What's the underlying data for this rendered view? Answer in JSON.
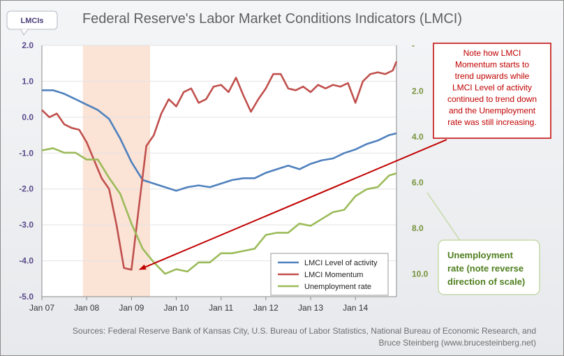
{
  "chart_data": {
    "type": "line",
    "title": "Federal Reserve's Labor Market Conditions Indicators (LMCI)",
    "y_left_label": "LMCIs",
    "y_left_range": [
      -5.0,
      2.0
    ],
    "y_left_ticks": [
      "2.0",
      "1.0",
      "0.0",
      "-1.0",
      "-2.0",
      "-3.0",
      "-4.0",
      "-5.0"
    ],
    "y_right_range": [
      0,
      11.0
    ],
    "y_right_reversed": true,
    "y_right_ticks": [
      "-",
      "2.0",
      "4.0",
      "6.0",
      "8.0",
      "10.0"
    ],
    "x_range": [
      "2007-01",
      "2014-12"
    ],
    "x_ticks": [
      "Jan 07",
      "Jan 08",
      "Jan 09",
      "Jan 10",
      "Jan 11",
      "Jan 12",
      "Jan 13",
      "Jan 14"
    ],
    "recession_shading": [
      "2007-12",
      "2009-06"
    ],
    "grid": "horizontal",
    "legend_position": "bottom-right",
    "series": [
      {
        "name": "LMCI Level of activity",
        "color": "#4f81bd",
        "axis": "left",
        "x": [
          "2007-01",
          "2007-04",
          "2007-07",
          "2007-10",
          "2008-01",
          "2008-04",
          "2008-07",
          "2008-10",
          "2009-01",
          "2009-04",
          "2009-07",
          "2009-10",
          "2010-01",
          "2010-04",
          "2010-07",
          "2010-10",
          "2011-01",
          "2011-04",
          "2011-07",
          "2011-10",
          "2012-01",
          "2012-04",
          "2012-07",
          "2012-10",
          "2013-01",
          "2013-04",
          "2013-07",
          "2013-10",
          "2014-01",
          "2014-04",
          "2014-07",
          "2014-10",
          "2014-12"
        ],
        "values": [
          0.75,
          0.75,
          0.65,
          0.5,
          0.35,
          0.2,
          -0.05,
          -0.6,
          -1.25,
          -1.75,
          -1.85,
          -1.95,
          -2.05,
          -1.95,
          -1.9,
          -1.95,
          -1.85,
          -1.75,
          -1.7,
          -1.7,
          -1.55,
          -1.45,
          -1.35,
          -1.45,
          -1.3,
          -1.2,
          -1.15,
          -1.0,
          -0.9,
          -0.75,
          -0.65,
          -0.5,
          -0.45
        ]
      },
      {
        "name": "LMCI Momentum",
        "color": "#c0504d",
        "axis": "left",
        "x": [
          "2007-01",
          "2007-03",
          "2007-05",
          "2007-07",
          "2007-09",
          "2007-11",
          "2008-01",
          "2008-03",
          "2008-05",
          "2008-07",
          "2008-09",
          "2008-11",
          "2009-01",
          "2009-03",
          "2009-05",
          "2009-07",
          "2009-09",
          "2009-11",
          "2010-01",
          "2010-03",
          "2010-05",
          "2010-07",
          "2010-09",
          "2010-11",
          "2011-01",
          "2011-03",
          "2011-05",
          "2011-07",
          "2011-09",
          "2011-11",
          "2012-01",
          "2012-03",
          "2012-05",
          "2012-07",
          "2012-09",
          "2012-11",
          "2013-01",
          "2013-03",
          "2013-05",
          "2013-07",
          "2013-09",
          "2013-11",
          "2014-01",
          "2014-03",
          "2014-05",
          "2014-07",
          "2014-09",
          "2014-11",
          "2014-12"
        ],
        "values": [
          0.2,
          0.0,
          0.1,
          -0.2,
          -0.3,
          -0.35,
          -0.7,
          -1.2,
          -1.7,
          -2.0,
          -3.0,
          -4.2,
          -4.25,
          -2.5,
          -0.8,
          -0.5,
          0.1,
          0.5,
          0.3,
          0.7,
          0.8,
          0.4,
          0.5,
          0.85,
          0.9,
          0.7,
          1.1,
          0.6,
          0.15,
          0.5,
          0.8,
          1.2,
          1.2,
          0.8,
          0.75,
          0.85,
          0.7,
          0.9,
          0.8,
          0.9,
          0.85,
          0.95,
          0.4,
          1.0,
          1.2,
          1.25,
          1.2,
          1.3,
          1.55
        ]
      },
      {
        "name": "Unemployment rate",
        "color": "#9bbb59",
        "axis": "right",
        "x": [
          "2007-01",
          "2007-04",
          "2007-07",
          "2007-10",
          "2008-01",
          "2008-04",
          "2008-07",
          "2008-10",
          "2009-01",
          "2009-04",
          "2009-07",
          "2009-10",
          "2010-01",
          "2010-04",
          "2010-07",
          "2010-10",
          "2011-01",
          "2011-04",
          "2011-07",
          "2011-10",
          "2012-01",
          "2012-04",
          "2012-07",
          "2012-10",
          "2013-01",
          "2013-04",
          "2013-07",
          "2013-10",
          "2014-01",
          "2014-04",
          "2014-07",
          "2014-10",
          "2014-12"
        ],
        "values": [
          4.6,
          4.5,
          4.7,
          4.7,
          5.0,
          5.0,
          5.8,
          6.5,
          7.8,
          8.9,
          9.5,
          10.0,
          9.8,
          9.9,
          9.5,
          9.5,
          9.1,
          9.1,
          9.0,
          8.9,
          8.3,
          8.2,
          8.2,
          7.8,
          7.9,
          7.6,
          7.3,
          7.2,
          6.6,
          6.3,
          6.2,
          5.7,
          5.6
        ]
      }
    ]
  },
  "badge_label": "LMCIs",
  "annotation_red": [
    "Note how LMCI",
    "Momentum starts to",
    "trend upwards while",
    "LMCI Level of activity",
    "continued to trend down",
    "and the Unemployment",
    "rate was still increasing."
  ],
  "annotation_green": [
    "Unemployment",
    "rate (note reverse",
    "direction of scale)"
  ],
  "source_lines": [
    "Sources:  Federal Reserve Bank of Kansas City, U.S. Bureau of Labor Statistics, National Bureau of Economic Research, and",
    "Bruce Steinberg (www.brucesteinberg.net)"
  ],
  "colors": {
    "left_axis": "#5b4a8c",
    "right_axis": "#77933c",
    "recession": "#fbe3d6",
    "arrow": "#c00000"
  }
}
